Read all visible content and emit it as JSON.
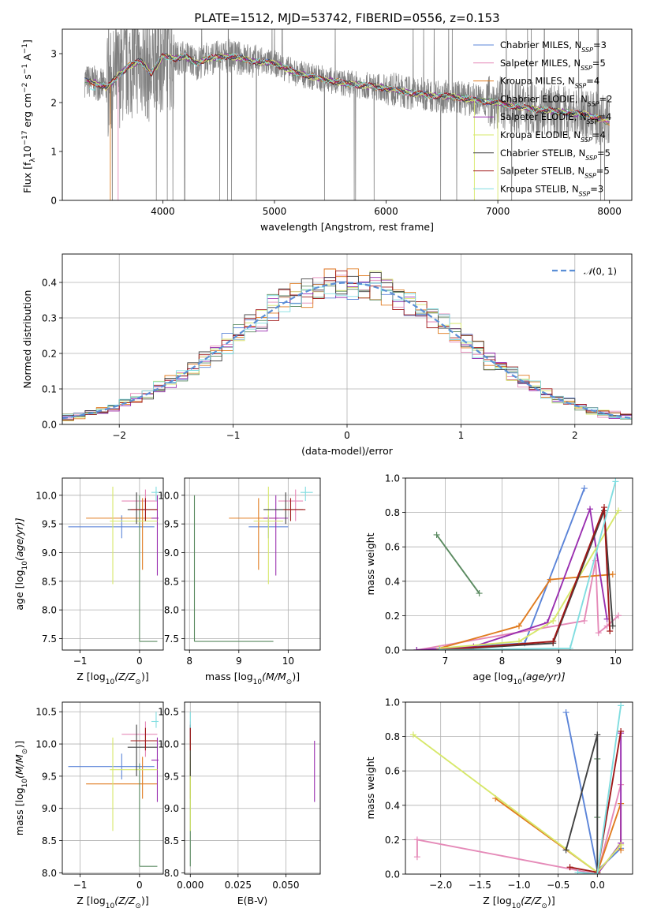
{
  "colors": {
    "Chabrier MILES": "#5b84d8",
    "Salpeter MILES": "#e58ab8",
    "Kroupa MILES": "#e07c20",
    "Chabrier ELODIE": "#5a8a60",
    "Salpeter ELODIE": "#9a2fb0",
    "Kroupa ELODIE": "#d7e86a",
    "Chabrier STELIB": "#404040",
    "Salpeter STELIB": "#a01818",
    "Kroupa STELIB": "#80dde0",
    "data": "#808080",
    "gauss": "#5b8fd6"
  },
  "chart_data": [
    {
      "id": "spectrum",
      "type": "line",
      "title": "PLATE=1512, MJD=53742, FIBERID=0556, z=0.153",
      "xlabel": "wavelength [Angstrom, rest frame]",
      "ylabel": "Flux [f",
      "ylabel_sub": "λ",
      "ylabel_rest": "10",
      "ylabel_exp": "−17",
      "ylabel_units": " erg cm",
      "ylabel_units_exp1": "−2",
      "ylabel_s": " s",
      "ylabel_s_exp": "−1",
      "ylabel_A": " A",
      "ylabel_A_exp": "−1",
      "ylabel_close": "]",
      "xlim": [
        3100,
        8200
      ],
      "ylim": [
        0,
        3.5
      ],
      "xticks": [
        "4000",
        "5000",
        "6000",
        "7000",
        "8000"
      ],
      "yticks": [
        "0",
        "1",
        "2",
        "3"
      ],
      "model_nodes": [
        [
          3300,
          2.45
        ],
        [
          3400,
          2.4
        ],
        [
          3500,
          2.3
        ],
        [
          3600,
          2.55
        ],
        [
          3700,
          2.75
        ],
        [
          3800,
          2.85
        ],
        [
          3900,
          2.6
        ],
        [
          4000,
          2.95
        ],
        [
          4100,
          2.9
        ],
        [
          4200,
          2.95
        ],
        [
          4300,
          2.8
        ],
        [
          4400,
          2.9
        ],
        [
          4600,
          2.95
        ],
        [
          4800,
          2.85
        ],
        [
          5000,
          2.8
        ],
        [
          5200,
          2.6
        ],
        [
          5400,
          2.5
        ],
        [
          5600,
          2.4
        ],
        [
          5800,
          2.35
        ],
        [
          6000,
          2.3
        ],
        [
          6200,
          2.2
        ],
        [
          6400,
          2.15
        ],
        [
          6600,
          2.12
        ],
        [
          6800,
          2.05
        ],
        [
          7000,
          2.0
        ],
        [
          7200,
          1.9
        ],
        [
          7400,
          1.85
        ],
        [
          7600,
          1.8
        ],
        [
          7800,
          1.75
        ],
        [
          8000,
          1.6
        ]
      ],
      "legend": [
        {
          "name": "Chabrier MILES",
          "N": "3"
        },
        {
          "name": "Salpeter MILES",
          "N": "5"
        },
        {
          "name": "Kroupa MILES",
          "N": "4"
        },
        {
          "name": "Chabrier ELODIE",
          "N": "2"
        },
        {
          "name": "Salpeter ELODIE",
          "N": "4"
        },
        {
          "name": "Kroupa ELODIE",
          "N": "4"
        },
        {
          "name": "Chabrier STELIB",
          "N": "5"
        },
        {
          "name": "Salpeter STELIB",
          "N": "5"
        },
        {
          "name": "Kroupa STELIB",
          "N": "3"
        }
      ],
      "legend_N_label": "N",
      "legend_N_sub": "SSP",
      "legend_eq": "="
    },
    {
      "id": "residuals",
      "type": "bar",
      "xlabel": "(data-model)/error",
      "ylabel": "Normed distribution",
      "xlim": [
        -2.5,
        2.5
      ],
      "ylim": [
        0,
        0.48
      ],
      "xticks": [
        "−2",
        "−1",
        "0",
        "1",
        "2"
      ],
      "yticks": [
        "0.0",
        "0.1",
        "0.2",
        "0.3",
        "0.4"
      ],
      "bin_width": 0.1,
      "legend": [
        {
          "name": "N(0, 1)"
        }
      ],
      "legend_script": "𝒩",
      "legend_args": "(0, 1)"
    },
    {
      "id": "age_vs_Z",
      "type": "scatter",
      "xlabel": "Z [log",
      "xlabel_sub": "10",
      "xlabel_rest": "(Z/Z",
      "xlabel_sun": "⊙",
      "xlabel_close": ")]",
      "ylabel": "age  [log",
      "ylabel_sub": "10",
      "ylabel_rest": "(age/yr)]",
      "xlim": [
        -1.3,
        0.4
      ],
      "ylim": [
        7.3,
        10.3
      ],
      "xticks": [
        "−1",
        "0"
      ],
      "yticks": [
        "7.5",
        "8.0",
        "8.5",
        "9.0",
        "9.5",
        "10.0"
      ],
      "points": [
        {
          "series": "Chabrier MILES",
          "x": -0.3,
          "y": 9.45,
          "xlo": -1.2,
          "xhi": 0.25,
          "ylo": 9.25,
          "yhi": 9.65
        },
        {
          "series": "Salpeter MILES",
          "x": 0.1,
          "y": 9.9,
          "xlo": -0.3,
          "xhi": 0.3,
          "ylo": 9.55,
          "yhi": 10.1
        },
        {
          "series": "Kroupa MILES",
          "x": 0.05,
          "y": 9.6,
          "xlo": -0.9,
          "xhi": 0.3,
          "ylo": 8.7,
          "yhi": 9.95
        },
        {
          "series": "Chabrier ELODIE",
          "x": 0.0,
          "y": 7.45,
          "xlo": 0.0,
          "xhi": 0.3,
          "ylo": 7.45,
          "yhi": 10.0
        },
        {
          "series": "Salpeter ELODIE",
          "x": 0.3,
          "y": 9.6,
          "xlo": 0.2,
          "xhi": 0.32,
          "ylo": 8.6,
          "yhi": 10.0
        },
        {
          "series": "Kroupa ELODIE",
          "x": -0.45,
          "y": 9.55,
          "xlo": -0.5,
          "xhi": 0.3,
          "ylo": 8.45,
          "yhi": 10.15
        },
        {
          "series": "Chabrier STELIB",
          "x": -0.05,
          "y": 9.75,
          "xlo": -0.2,
          "xhi": 0.3,
          "ylo": 9.5,
          "yhi": 10.05
        },
        {
          "series": "Salpeter STELIB",
          "x": 0.1,
          "y": 9.75,
          "xlo": -0.15,
          "xhi": 0.3,
          "ylo": 9.55,
          "yhi": 9.95
        },
        {
          "series": "Kroupa STELIB",
          "x": 0.28,
          "y": 10.05,
          "xlo": 0.2,
          "xhi": 0.32,
          "ylo": 9.9,
          "yhi": 10.15
        }
      ]
    },
    {
      "id": "age_vs_mass",
      "type": "scatter",
      "xlabel": "mass [log",
      "xlabel_sub": "10",
      "xlabel_rest": "(M/M",
      "xlabel_sun": "⊙",
      "xlabel_close": ")]",
      "xlim": [
        7.9,
        10.65
      ],
      "ylim": [
        7.3,
        10.3
      ],
      "xticks": [
        "8",
        "9",
        "10"
      ],
      "yticks": [
        "7.5",
        "8.0",
        "8.5",
        "9.0",
        "9.5",
        "10.0"
      ],
      "points": [
        {
          "series": "Chabrier MILES",
          "x": 9.6,
          "y": 9.45,
          "xlo": 9.2,
          "xhi": 10.0,
          "ylo": 9.25,
          "yhi": 9.65
        },
        {
          "series": "Salpeter MILES",
          "x": 10.15,
          "y": 9.9,
          "xlo": 9.8,
          "xhi": 10.3,
          "ylo": 9.55,
          "yhi": 10.1
        },
        {
          "series": "Kroupa MILES",
          "x": 9.4,
          "y": 9.6,
          "xlo": 8.8,
          "xhi": 9.8,
          "ylo": 8.7,
          "yhi": 9.95
        },
        {
          "series": "Chabrier ELODIE",
          "x": 8.1,
          "y": 7.45,
          "xlo": 8.1,
          "xhi": 9.7,
          "ylo": 7.45,
          "yhi": 10.0
        },
        {
          "series": "Salpeter ELODIE",
          "x": 9.75,
          "y": 9.6,
          "xlo": 9.5,
          "xhi": 10.0,
          "ylo": 8.6,
          "yhi": 10.0
        },
        {
          "series": "Kroupa ELODIE",
          "x": 9.6,
          "y": 9.55,
          "xlo": 9.3,
          "xhi": 9.9,
          "ylo": 8.45,
          "yhi": 10.15
        },
        {
          "series": "Chabrier STELIB",
          "x": 9.95,
          "y": 9.75,
          "xlo": 9.5,
          "xhi": 10.3,
          "ylo": 9.5,
          "yhi": 10.05
        },
        {
          "series": "Salpeter STELIB",
          "x": 10.05,
          "y": 9.75,
          "xlo": 9.9,
          "xhi": 10.35,
          "ylo": 9.55,
          "yhi": 9.95
        },
        {
          "series": "Kroupa STELIB",
          "x": 10.35,
          "y": 10.05,
          "xlo": 10.25,
          "xhi": 10.5,
          "ylo": 9.9,
          "yhi": 10.15
        }
      ]
    },
    {
      "id": "weight_vs_age",
      "type": "line",
      "xlabel": "age  [log",
      "xlabel_sub": "10",
      "xlabel_rest": "(age/yr)]",
      "ylabel": "mass weight",
      "xlim": [
        6.3,
        10.3
      ],
      "ylim": [
        0,
        1.0
      ],
      "xticks": [
        "7",
        "8",
        "9",
        "10"
      ],
      "yticks": [
        "0.0",
        "0.2",
        "0.4",
        "0.6",
        "0.8",
        "1.0"
      ],
      "series": [
        {
          "name": "Chabrier MILES",
          "points": [
            [
              6.5,
              0.0
            ],
            [
              8.4,
              0.04
            ],
            [
              9.45,
              0.94
            ]
          ]
        },
        {
          "name": "Salpeter MILES",
          "points": [
            [
              6.5,
              0.0
            ],
            [
              9.45,
              0.17
            ],
            [
              9.65,
              0.52
            ],
            [
              9.7,
              0.1
            ],
            [
              9.85,
              0.14
            ],
            [
              10.05,
              0.2
            ]
          ]
        },
        {
          "name": "Kroupa MILES",
          "points": [
            [
              6.9,
              0.01
            ],
            [
              8.3,
              0.14
            ],
            [
              8.85,
              0.41
            ],
            [
              9.95,
              0.44
            ]
          ]
        },
        {
          "name": "Chabrier ELODIE",
          "points": [
            [
              6.85,
              0.67
            ],
            [
              7.6,
              0.33
            ]
          ]
        },
        {
          "name": "Salpeter ELODIE",
          "points": [
            [
              6.5,
              0.0
            ],
            [
              7.5,
              0.02
            ],
            [
              8.8,
              0.16
            ],
            [
              9.55,
              0.82
            ],
            [
              9.85,
              0.18
            ]
          ]
        },
        {
          "name": "Kroupa ELODIE",
          "points": [
            [
              6.9,
              0.01
            ],
            [
              8.3,
              0.05
            ],
            [
              8.9,
              0.17
            ],
            [
              10.05,
              0.81
            ]
          ]
        },
        {
          "name": "Chabrier STELIB",
          "points": [
            [
              6.9,
              0.0
            ],
            [
              8.9,
              0.04
            ],
            [
              9.8,
              0.81
            ],
            [
              9.95,
              0.14
            ]
          ]
        },
        {
          "name": "Salpeter STELIB",
          "points": [
            [
              6.9,
              0.0
            ],
            [
              8.9,
              0.05
            ],
            [
              9.8,
              0.83
            ],
            [
              9.9,
              0.11
            ]
          ]
        },
        {
          "name": "Kroupa STELIB",
          "points": [
            [
              6.9,
              0.0
            ],
            [
              9.2,
              0.01
            ],
            [
              10.0,
              0.98
            ]
          ]
        }
      ]
    },
    {
      "id": "mass_vs_Z",
      "type": "scatter",
      "xlabel": "Z [log",
      "xlabel_sub": "10",
      "xlabel_rest": "(Z/Z",
      "xlabel_sun": "⊙",
      "xlabel_close": ")]",
      "ylabel": "mass [log",
      "ylabel_sub": "10",
      "ylabel_rest": "(M/M",
      "ylabel_sun": "⊙",
      "ylabel_close": ")]",
      "xlim": [
        -1.3,
        0.4
      ],
      "ylim": [
        7.98,
        10.65
      ],
      "xticks": [
        "−1",
        "0"
      ],
      "yticks": [
        "8.0",
        "8.5",
        "9.0",
        "9.5",
        "10.0",
        "10.5"
      ],
      "points": [
        {
          "series": "Chabrier MILES",
          "x": -0.3,
          "y": 9.65,
          "xlo": -1.2,
          "xhi": 0.25,
          "ylo": 9.45,
          "yhi": 9.85
        },
        {
          "series": "Salpeter MILES",
          "x": 0.1,
          "y": 10.15,
          "xlo": -0.3,
          "xhi": 0.3,
          "ylo": 9.8,
          "yhi": 10.35
        },
        {
          "series": "Kroupa MILES",
          "x": 0.05,
          "y": 9.38,
          "xlo": -0.9,
          "xhi": 0.3,
          "ylo": 9.15,
          "yhi": 9.8
        },
        {
          "series": "Chabrier ELODIE",
          "x": 0.0,
          "y": 8.1,
          "xlo": 0.0,
          "xhi": 0.3,
          "ylo": 8.1,
          "yhi": 9.7
        },
        {
          "series": "Salpeter ELODIE",
          "x": 0.3,
          "y": 9.75,
          "xlo": 0.2,
          "xhi": 0.32,
          "ylo": 9.1,
          "yhi": 10.1
        },
        {
          "series": "Kroupa ELODIE",
          "x": -0.45,
          "y": 9.6,
          "xlo": -0.5,
          "xhi": 0.3,
          "ylo": 8.65,
          "yhi": 10.1
        },
        {
          "series": "Chabrier STELIB",
          "x": -0.05,
          "y": 9.95,
          "xlo": -0.2,
          "xhi": 0.3,
          "ylo": 9.5,
          "yhi": 10.3
        },
        {
          "series": "Salpeter STELIB",
          "x": 0.1,
          "y": 10.05,
          "xlo": -0.15,
          "xhi": 0.3,
          "ylo": 9.9,
          "yhi": 10.25
        },
        {
          "series": "Kroupa STELIB",
          "x": 0.28,
          "y": 10.35,
          "xlo": 0.2,
          "xhi": 0.32,
          "ylo": 10.25,
          "yhi": 10.5
        }
      ]
    },
    {
      "id": "mass_vs_EBV",
      "type": "scatter",
      "xlabel": "E(B-V)",
      "xlim": [
        -0.003,
        0.068
      ],
      "ylim": [
        7.98,
        10.65
      ],
      "xticks": [
        "0.000",
        "0.025",
        "0.050"
      ],
      "yticks": [
        "8.0",
        "8.5",
        "9.0",
        "9.5",
        "10.0",
        "10.5"
      ],
      "points": [
        {
          "series": "Chabrier MILES",
          "x": 0.0,
          "y": 9.65,
          "ylo": 9.45,
          "yhi": 9.85
        },
        {
          "series": "Salpeter MILES",
          "x": 0.0,
          "y": 10.15,
          "ylo": 9.8,
          "yhi": 10.35
        },
        {
          "series": "Kroupa MILES",
          "x": 0.0,
          "y": 9.38,
          "ylo": 9.15,
          "yhi": 9.8
        },
        {
          "series": "Chabrier ELODIE",
          "x": 0.0,
          "y": 8.1,
          "ylo": 8.1,
          "yhi": 9.7
        },
        {
          "series": "Salpeter ELODIE",
          "x": 0.065,
          "y": 9.75,
          "ylo": 9.1,
          "yhi": 10.05
        },
        {
          "series": "Kroupa ELODIE",
          "x": 0.0,
          "y": 9.6,
          "ylo": 8.65,
          "yhi": 10.1
        },
        {
          "series": "Chabrier STELIB",
          "x": 0.0,
          "y": 9.95,
          "ylo": 9.5,
          "yhi": 10.3
        },
        {
          "series": "Salpeter STELIB",
          "x": 0.0,
          "y": 10.05,
          "ylo": 9.9,
          "yhi": 10.25
        },
        {
          "series": "Kroupa STELIB",
          "x": 0.0,
          "y": 10.35,
          "ylo": 10.25,
          "yhi": 10.5
        }
      ]
    },
    {
      "id": "weight_vs_Z",
      "type": "line",
      "xlabel": "Z [log",
      "xlabel_sub": "10",
      "xlabel_rest": "(Z/Z",
      "xlabel_sun": "⊙",
      "xlabel_close": ")]",
      "ylabel": "mass weight",
      "xlim": [
        -2.45,
        0.45
      ],
      "ylim": [
        0,
        1.0
      ],
      "xticks": [
        "−2.0",
        "−1.5",
        "−1.0",
        "−0.5",
        "0.0"
      ],
      "yticks": [
        "0.0",
        "0.2",
        "0.4",
        "0.6",
        "0.8",
        "1.0"
      ],
      "series": [
        {
          "name": "Chabrier MILES",
          "points": [
            [
              -0.4,
              0.94
            ],
            [
              0.0,
              0.02
            ],
            [
              0.3,
              0.15
            ]
          ]
        },
        {
          "name": "Salpeter MILES",
          "points": [
            [
              -2.3,
              0.1
            ],
            [
              -2.3,
              0.2
            ],
            [
              0.0,
              0.0
            ],
            [
              0.3,
              0.52
            ]
          ]
        },
        {
          "name": "Kroupa MILES",
          "points": [
            [
              -1.3,
              0.44
            ],
            [
              0.0,
              0.01
            ],
            [
              0.3,
              0.41
            ],
            [
              0.3,
              0.14
            ]
          ]
        },
        {
          "name": "Chabrier ELODIE",
          "points": [
            [
              0.0,
              0.67
            ],
            [
              0.0,
              0.33
            ]
          ]
        },
        {
          "name": "Salpeter ELODIE",
          "points": [
            [
              0.0,
              0.0
            ],
            [
              0.3,
              0.18
            ],
            [
              0.3,
              0.82
            ]
          ]
        },
        {
          "name": "Kroupa ELODIE",
          "points": [
            [
              -2.35,
              0.81
            ],
            [
              0.0,
              0.01
            ],
            [
              0.3,
              0.17
            ]
          ]
        },
        {
          "name": "Chabrier STELIB",
          "points": [
            [
              -0.4,
              0.14
            ],
            [
              0.0,
              0.81
            ],
            [
              0.0,
              0.0
            ]
          ]
        },
        {
          "name": "Salpeter STELIB",
          "points": [
            [
              -0.35,
              0.04
            ],
            [
              0.0,
              0.01
            ],
            [
              0.3,
              0.83
            ]
          ]
        },
        {
          "name": "Kroupa STELIB",
          "points": [
            [
              -0.25,
              0.01
            ],
            [
              0.0,
              0.0
            ],
            [
              0.3,
              0.98
            ]
          ]
        }
      ]
    }
  ]
}
